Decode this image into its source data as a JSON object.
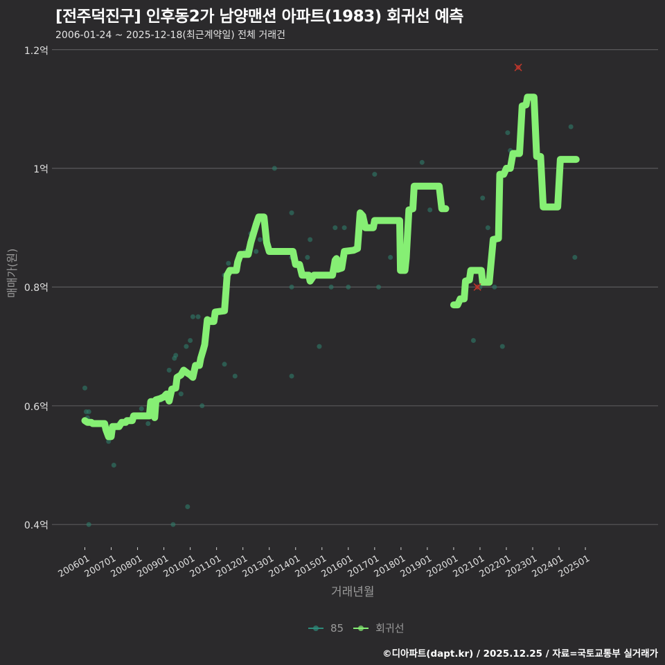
{
  "title": "[전주덕진구] 인후동2가 남양맨션 아파트(1983) 회귀선 예측",
  "subtitle": "2006-01-24 ~ 2025-12-18(최근계약일) 전체 거래건",
  "footer": "©디아파트(dapt.kr) / 2025.12.25 / 자료=국토교통부 실거래가",
  "colors": {
    "background": "#2b2a2c",
    "grid": "#5a595b",
    "regression": "#86ef74",
    "scatter": "#2e7d6b",
    "outlier": "#c0392b"
  },
  "legend": [
    {
      "label": "85",
      "color": "#2e8b7a"
    },
    {
      "label": "회귀선",
      "color": "#86ef74"
    }
  ],
  "chart_data": {
    "type": "line",
    "title": "[전주덕진구] 인후동2가 남양맨션 아파트(1983) 회귀선 예측",
    "subtitle": "2006-01-24 ~ 2025-12-18(최근계약일) 전체 거래건",
    "xlabel": "거래년월",
    "ylabel": "매매가(원)",
    "ylim": [
      0.37,
      1.2
    ],
    "yticks": [
      0.4,
      0.6,
      0.8,
      1.0,
      1.2
    ],
    "ytick_labels": [
      "0.4억",
      "0.6억",
      "0.8억",
      "1억",
      "1.2억"
    ],
    "xticks": [
      "200601",
      "200701",
      "200801",
      "200901",
      "201001",
      "201101",
      "201201",
      "201301",
      "201401",
      "201501",
      "201601",
      "201701",
      "201801",
      "201901",
      "202001",
      "202101",
      "202201",
      "202301",
      "202401",
      "202501"
    ],
    "grid": true,
    "legend_position": "bottom",
    "series": [
      {
        "name": "회귀선",
        "type": "line",
        "segments": [
          [
            [
              2006.0,
              0.575
            ],
            [
              2006.1,
              0.572
            ],
            [
              2006.25,
              0.572
            ],
            [
              2006.3,
              0.57
            ],
            [
              2006.75,
              0.57
            ],
            [
              2006.8,
              0.56
            ],
            [
              2006.9,
              0.548
            ],
            [
              2007.0,
              0.548
            ],
            [
              2007.05,
              0.565
            ],
            [
              2007.3,
              0.565
            ],
            [
              2007.4,
              0.572
            ],
            [
              2007.55,
              0.572
            ],
            [
              2007.6,
              0.575
            ],
            [
              2007.8,
              0.575
            ],
            [
              2007.85,
              0.583
            ],
            [
              2008.45,
              0.583
            ],
            [
              2008.5,
              0.607
            ],
            [
              2008.6,
              0.607
            ],
            [
              2008.65,
              0.58
            ],
            [
              2008.7,
              0.61
            ],
            [
              2008.85,
              0.612
            ],
            [
              2009.0,
              0.615
            ],
            [
              2009.1,
              0.62
            ],
            [
              2009.2,
              0.608
            ],
            [
              2009.3,
              0.628
            ],
            [
              2009.45,
              0.63
            ],
            [
              2009.5,
              0.648
            ],
            [
              2009.65,
              0.652
            ],
            [
              2009.75,
              0.66
            ],
            [
              2009.9,
              0.655
            ],
            [
              2010.0,
              0.652
            ],
            [
              2010.1,
              0.648
            ],
            [
              2010.2,
              0.668
            ],
            [
              2010.35,
              0.668
            ],
            [
              2010.4,
              0.68
            ],
            [
              2010.5,
              0.695
            ],
            [
              2010.55,
              0.703
            ],
            [
              2010.65,
              0.745
            ],
            [
              2010.8,
              0.742
            ],
            [
              2010.9,
              0.742
            ],
            [
              2010.95,
              0.758
            ],
            [
              2011.3,
              0.76
            ],
            [
              2011.4,
              0.82
            ],
            [
              2011.5,
              0.828
            ],
            [
              2011.75,
              0.828
            ],
            [
              2011.8,
              0.842
            ],
            [
              2011.9,
              0.855
            ],
            [
              2012.2,
              0.855
            ],
            [
              2012.3,
              0.875
            ],
            [
              2012.5,
              0.905
            ],
            [
              2012.6,
              0.918
            ],
            [
              2012.8,
              0.918
            ],
            [
              2012.9,
              0.875
            ],
            [
              2013.0,
              0.86
            ],
            [
              2013.9,
              0.86
            ],
            [
              2014.0,
              0.838
            ],
            [
              2014.15,
              0.838
            ],
            [
              2014.25,
              0.82
            ],
            [
              2014.5,
              0.82
            ],
            [
              2014.55,
              0.81
            ],
            [
              2014.7,
              0.82
            ],
            [
              2015.4,
              0.82
            ],
            [
              2015.5,
              0.845
            ],
            [
              2015.55,
              0.848
            ],
            [
              2015.6,
              0.83
            ],
            [
              2015.75,
              0.832
            ],
            [
              2015.85,
              0.86
            ],
            [
              2016.2,
              0.862
            ],
            [
              2016.35,
              0.865
            ],
            [
              2016.45,
              0.925
            ],
            [
              2016.55,
              0.92
            ],
            [
              2016.65,
              0.9
            ],
            [
              2016.95,
              0.9
            ],
            [
              2017.0,
              0.912
            ],
            [
              2017.95,
              0.912
            ],
            [
              2017.98,
              0.828
            ],
            [
              2018.15,
              0.828
            ],
            [
              2018.2,
              0.85
            ],
            [
              2018.3,
              0.93
            ],
            [
              2018.45,
              0.932
            ],
            [
              2018.5,
              0.97
            ],
            [
              2019.45,
              0.97
            ],
            [
              2019.55,
              0.932
            ],
            [
              2019.7,
              0.932
            ]
          ],
          [
            [
              2020.0,
              0.77
            ],
            [
              2020.15,
              0.77
            ],
            [
              2020.25,
              0.78
            ],
            [
              2020.4,
              0.78
            ],
            [
              2020.45,
              0.81
            ],
            [
              2020.6,
              0.812
            ],
            [
              2020.65,
              0.828
            ],
            [
              2021.05,
              0.828
            ],
            [
              2021.1,
              0.808
            ],
            [
              2021.35,
              0.808
            ],
            [
              2021.5,
              0.88
            ],
            [
              2021.7,
              0.882
            ],
            [
              2021.75,
              0.99
            ],
            [
              2021.9,
              0.99
            ],
            [
              2022.0,
              1.0
            ],
            [
              2022.15,
              1.0
            ],
            [
              2022.25,
              1.025
            ],
            [
              2022.5,
              1.025
            ],
            [
              2022.6,
              1.105
            ],
            [
              2022.75,
              1.107
            ],
            [
              2022.8,
              1.12
            ],
            [
              2023.05,
              1.12
            ],
            [
              2023.15,
              1.02
            ],
            [
              2023.3,
              1.02
            ],
            [
              2023.4,
              0.935
            ],
            [
              2023.95,
              0.935
            ],
            [
              2024.05,
              1.015
            ],
            [
              2024.65,
              1.015
            ]
          ]
        ]
      },
      {
        "name": "85",
        "type": "scatter",
        "points": [
          [
            2006.0,
            0.63
          ],
          [
            2006.05,
            0.59
          ],
          [
            2006.15,
            0.59
          ],
          [
            2006.1,
            0.58
          ],
          [
            2006.15,
            0.4
          ],
          [
            2006.9,
            0.54
          ],
          [
            2007.1,
            0.5
          ],
          [
            2007.3,
            0.57
          ],
          [
            2007.75,
            0.575
          ],
          [
            2008.15,
            0.595
          ],
          [
            2008.4,
            0.57
          ],
          [
            2008.7,
            0.6
          ],
          [
            2008.9,
            0.61
          ],
          [
            2009.2,
            0.66
          ],
          [
            2009.4,
            0.68
          ],
          [
            2009.45,
            0.685
          ],
          [
            2009.35,
            0.4
          ],
          [
            2009.65,
            0.62
          ],
          [
            2009.85,
            0.7
          ],
          [
            2009.9,
            0.43
          ],
          [
            2010.0,
            0.71
          ],
          [
            2010.1,
            0.75
          ],
          [
            2010.3,
            0.75
          ],
          [
            2010.45,
            0.6
          ],
          [
            2010.9,
            0.75
          ],
          [
            2011.3,
            0.67
          ],
          [
            2011.3,
            0.82
          ],
          [
            2011.45,
            0.84
          ],
          [
            2011.7,
            0.65
          ],
          [
            2011.9,
            0.85
          ],
          [
            2012.1,
            0.86
          ],
          [
            2012.3,
            0.89
          ],
          [
            2012.5,
            0.86
          ],
          [
            2012.65,
            0.88
          ],
          [
            2013.2,
            1.0
          ],
          [
            2013.2,
            0.86
          ],
          [
            2013.85,
            0.925
          ],
          [
            2013.85,
            0.85
          ],
          [
            2013.85,
            0.8
          ],
          [
            2013.85,
            0.65
          ],
          [
            2014.45,
            0.85
          ],
          [
            2014.55,
            0.88
          ],
          [
            2014.9,
            0.7
          ],
          [
            2015.35,
            0.8
          ],
          [
            2015.5,
            0.9
          ],
          [
            2015.85,
            0.9
          ],
          [
            2016.0,
            0.8
          ],
          [
            2016.6,
            0.9
          ],
          [
            2017.0,
            0.99
          ],
          [
            2017.15,
            0.8
          ],
          [
            2017.6,
            0.85
          ],
          [
            2018.2,
            0.86
          ],
          [
            2018.8,
            1.01
          ],
          [
            2019.1,
            0.93
          ],
          [
            2020.75,
            0.71
          ],
          [
            2020.9,
            0.8
          ],
          [
            2021.0,
            0.8
          ],
          [
            2021.1,
            0.95
          ],
          [
            2021.3,
            0.9
          ],
          [
            2021.55,
            0.8
          ],
          [
            2021.85,
            0.7
          ],
          [
            2022.05,
            1.06
          ],
          [
            2022.15,
            1.03
          ],
          [
            2024.45,
            1.07
          ],
          [
            2024.6,
            0.85
          ]
        ]
      },
      {
        "name": "outliers",
        "type": "scatter",
        "marker": "x",
        "points": [
          [
            2020.9,
            0.8
          ],
          [
            2022.45,
            1.17
          ]
        ]
      }
    ]
  },
  "axes": {
    "xlabel": "거래년월",
    "ylabel": "매매가(원)"
  }
}
